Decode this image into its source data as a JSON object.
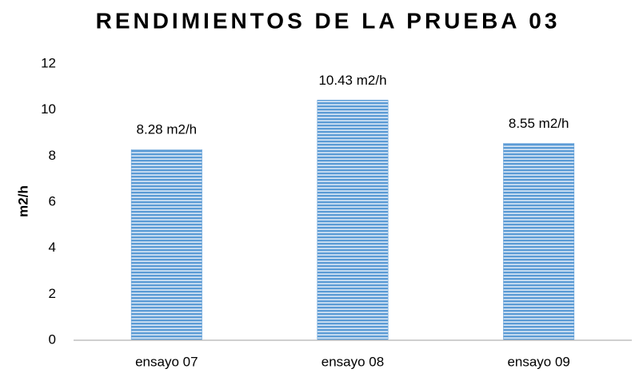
{
  "chart_data": {
    "type": "bar",
    "title": "RENDIMIENTOS DE LA PRUEBA 03",
    "y_label": "m2/h",
    "categories": [
      "ensayo 07",
      "ensayo 08",
      "ensayo 09"
    ],
    "values": [
      8.28,
      10.43,
      8.55
    ],
    "value_labels": [
      "8.28 m2/h",
      "10.43 m2/h",
      "8.55 m2/h"
    ],
    "color": "#5b9bd5",
    "ylim": [
      0,
      12
    ],
    "yticks": [
      0,
      2,
      4,
      6,
      8,
      10,
      12
    ],
    "grid": false
  }
}
